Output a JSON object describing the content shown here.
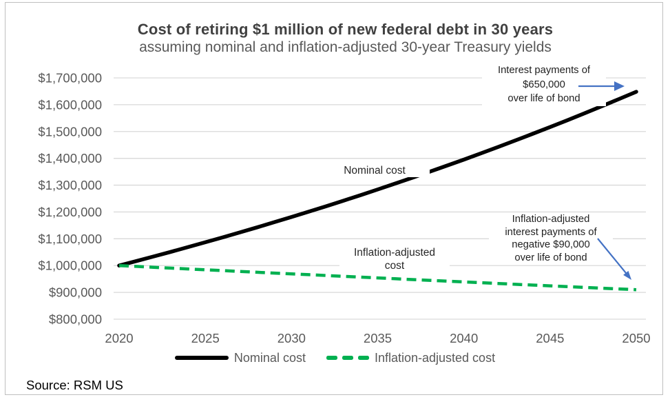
{
  "header": {
    "title": "Cost of retiring $1 million of new federal debt in 30 years",
    "subtitle": "assuming nominal and inflation-adjusted 30-year Treasury yields"
  },
  "chart_data": {
    "type": "line",
    "title": "Cost of retiring $1 million of new federal debt in 30 years",
    "subtitle": "assuming nominal and inflation-adjusted 30-year Treasury yields",
    "xlabel": "",
    "ylabel": "",
    "xlim": [
      2020,
      2050
    ],
    "ylim": [
      800000,
      1700000
    ],
    "grid": "horizontal",
    "legend_position": "bottom",
    "gridline_color": "#D9D9D9",
    "axis_label_color": "#595959",
    "x": [
      2020,
      2021,
      2022,
      2023,
      2024,
      2025,
      2026,
      2027,
      2028,
      2029,
      2030,
      2031,
      2032,
      2033,
      2034,
      2035,
      2036,
      2037,
      2038,
      2039,
      2040,
      2041,
      2042,
      2043,
      2044,
      2045,
      2046,
      2047,
      2048,
      2049,
      2050
    ],
    "x_ticks": [
      {
        "value": 2020,
        "label": "2020"
      },
      {
        "value": 2025,
        "label": "2025"
      },
      {
        "value": 2030,
        "label": "2030"
      },
      {
        "value": 2035,
        "label": "2035"
      },
      {
        "value": 2040,
        "label": "2040"
      },
      {
        "value": 2045,
        "label": "2045"
      },
      {
        "value": 2050,
        "label": "2050"
      }
    ],
    "y_ticks": [
      {
        "value": 1700000,
        "label": "$1,700,000"
      },
      {
        "value": 1600000,
        "label": "$1,600,000"
      },
      {
        "value": 1500000,
        "label": "$1,500,000"
      },
      {
        "value": 1400000,
        "label": "$1,400,000"
      },
      {
        "value": 1300000,
        "label": "$1,300,000"
      },
      {
        "value": 1200000,
        "label": "$1,200,000"
      },
      {
        "value": 1100000,
        "label": "$1,100,000"
      },
      {
        "value": 1000000,
        "label": "$1,000,000"
      },
      {
        "value": 900000,
        "label": "$900,000"
      },
      {
        "value": 800000,
        "label": "$800,000"
      }
    ],
    "series": [
      {
        "name": "Nominal cost",
        "color": "#000000",
        "style": "solid",
        "stroke_width": 5.5,
        "dash": "",
        "data_name": "nominal-cost-line",
        "values": [
          1000000,
          1016800,
          1033900,
          1051300,
          1068900,
          1086900,
          1105100,
          1123700,
          1142600,
          1161800,
          1181300,
          1201100,
          1221300,
          1241800,
          1262700,
          1283900,
          1305500,
          1327400,
          1349700,
          1372400,
          1395400,
          1418900,
          1442700,
          1467000,
          1491600,
          1516700,
          1542100,
          1568000,
          1594400,
          1621200,
          1648400
        ]
      },
      {
        "name": "Inflation-adjusted cost",
        "color": "#00B050",
        "style": "dashed",
        "stroke_width": 4.5,
        "dash": "14 8",
        "data_name": "inflation-adjusted-cost-line",
        "values": [
          1000000,
          996900,
          993700,
          990600,
          987500,
          984400,
          981300,
          978200,
          975200,
          972100,
          969000,
          966000,
          963000,
          960000,
          956900,
          953900,
          950900,
          947900,
          945000,
          942000,
          939000,
          936100,
          933100,
          930200,
          927300,
          924400,
          921500,
          918600,
          915700,
          912800,
          910000
        ]
      }
    ]
  },
  "annotations": {
    "arrow_color": "#4472C4",
    "nominal_line_label": "Nominal cost",
    "inflation_line_label": {
      "lines": [
        "Inflation-adjusted",
        "cost"
      ]
    },
    "nominal_callout": {
      "lines": [
        "Interest payments of",
        "$650,000",
        "over life of bond"
      ]
    },
    "inflation_callout": {
      "lines": [
        "Inflation-adjusted",
        "interest payments of",
        "negative $90,000",
        "over life of bond"
      ]
    }
  },
  "footer": {
    "source": "Source: RSM US"
  }
}
